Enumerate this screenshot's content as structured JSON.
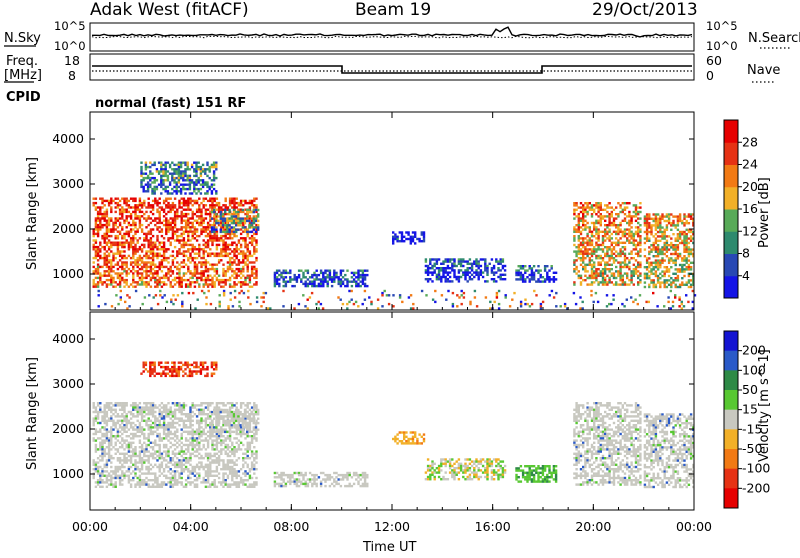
{
  "header": {
    "radar": "Adak West (fitACF)",
    "beam": "Beam 19",
    "date": "29/Oct/2013"
  },
  "top_panel": {
    "left_label": "N.Sky",
    "right_label": "N.Search",
    "left_ticks": [
      "10^5",
      "10^0"
    ],
    "right_ticks": [
      "10^5",
      "10^0"
    ]
  },
  "freq_panel": {
    "left_label_line1": "Freq.",
    "left_label_line2": "[MHz]",
    "right_label": "Nave",
    "left_ticks": [
      "18",
      "8"
    ],
    "right_ticks": [
      "60",
      "0"
    ]
  },
  "cpid": {
    "label": "CPID",
    "text": "normal (fast) 151 RF"
  },
  "chart_data": [
    {
      "type": "heatmap",
      "name": "power",
      "ylabel": "Slant Range [km]",
      "ylim": [
        200,
        4600
      ],
      "yticks": [
        "1000",
        "2000",
        "3000",
        "4000"
      ],
      "xlabel": "Time UT",
      "xlim_hours": [
        0,
        24
      ],
      "colorbar": {
        "label": "Power [dB]",
        "ticks": [
          "4",
          "8",
          "12",
          "16",
          "20",
          "24",
          "28"
        ],
        "colors": [
          "#1414e6",
          "#2848b4",
          "#2e8a6e",
          "#58aa58",
          "#f2b028",
          "#f27a14",
          "#e63214",
          "#e60000"
        ]
      },
      "regions": [
        {
          "t": [
            0.1,
            6.6
          ],
          "r": [
            700,
            2700
          ],
          "level": 0.85
        },
        {
          "t": [
            2.0,
            5.0
          ],
          "r": [
            2800,
            3500
          ],
          "level": 0.35
        },
        {
          "t": [
            4.8,
            6.7
          ],
          "r": [
            1950,
            2450
          ],
          "level": 0.45
        },
        {
          "t": [
            7.3,
            11.0
          ],
          "r": [
            750,
            1100
          ],
          "level": 0.25
        },
        {
          "t": [
            12.0,
            13.3
          ],
          "r": [
            1700,
            1950
          ],
          "level": 0.1
        },
        {
          "t": [
            13.3,
            16.5
          ],
          "r": [
            850,
            1350
          ],
          "level": 0.2
        },
        {
          "t": [
            16.9,
            18.5
          ],
          "r": [
            850,
            1200
          ],
          "level": 0.2
        },
        {
          "t": [
            19.2,
            21.9
          ],
          "r": [
            750,
            2600
          ],
          "level": 0.7
        },
        {
          "t": [
            22.0,
            24.0
          ],
          "r": [
            700,
            2350
          ],
          "level": 0.65
        },
        {
          "t": [
            0.3,
            24.0
          ],
          "r": [
            250,
            650
          ],
          "level": 0.45
        }
      ]
    },
    {
      "type": "heatmap",
      "name": "velocity",
      "ylabel": "Slant Range [km]",
      "ylim": [
        200,
        4600
      ],
      "yticks": [
        "1000",
        "2000",
        "3000",
        "4000"
      ],
      "xlabel": "Time UT",
      "xlim_hours": [
        0,
        24
      ],
      "xticks": [
        "00:00",
        "04:00",
        "08:00",
        "12:00",
        "16:00",
        "20:00",
        "00:00"
      ],
      "colorbar": {
        "label": "Velocity [m s^-1]",
        "ticks": [
          "200",
          "100",
          "50",
          "15",
          "-15",
          "-50",
          "-100",
          "-200"
        ],
        "colors": [
          "#1414d2",
          "#2a5ac8",
          "#2e8a46",
          "#58c832",
          "#c8c8c0",
          "#f2b028",
          "#f27a14",
          "#e63214",
          "#e60000"
        ]
      },
      "regions": [
        {
          "t": [
            0.1,
            6.6
          ],
          "r": [
            700,
            2600
          ],
          "class": "gray"
        },
        {
          "t": [
            2.0,
            5.0
          ],
          "r": [
            3200,
            3500
          ],
          "class": "red"
        },
        {
          "t": [
            4.8,
            6.7
          ],
          "r": [
            1950,
            2450
          ],
          "class": "gray"
        },
        {
          "t": [
            7.3,
            11.0
          ],
          "r": [
            750,
            1050
          ],
          "class": "gray"
        },
        {
          "t": [
            12.0,
            13.3
          ],
          "r": [
            1700,
            1950
          ],
          "class": "orange"
        },
        {
          "t": [
            13.3,
            16.5
          ],
          "r": [
            900,
            1350
          ],
          "class": "mixed"
        },
        {
          "t": [
            16.9,
            18.5
          ],
          "r": [
            850,
            1200
          ],
          "class": "green"
        },
        {
          "t": [
            19.2,
            21.9
          ],
          "r": [
            750,
            2600
          ],
          "class": "gray"
        },
        {
          "t": [
            22.0,
            24.0
          ],
          "r": [
            700,
            2350
          ],
          "class": "gray"
        }
      ]
    }
  ]
}
